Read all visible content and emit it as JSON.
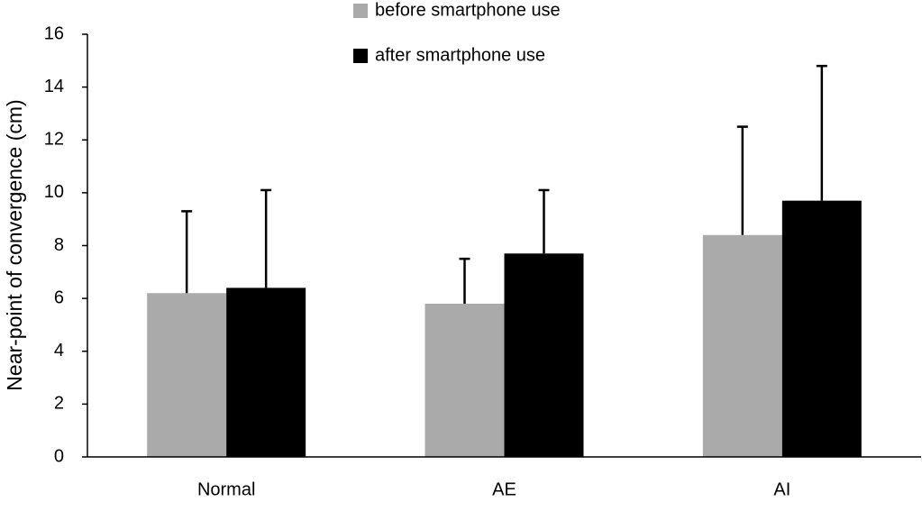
{
  "chart_data": {
    "type": "bar",
    "y_label": "Near-point of convergence (cm)",
    "categories": [
      "Normal",
      "AE",
      "AI"
    ],
    "series": [
      {
        "name": "before smartphone use",
        "color": "#aaaaaa",
        "values": [
          6.2,
          5.8,
          8.4
        ],
        "errors": [
          3.1,
          1.7,
          4.1
        ]
      },
      {
        "name": "after smartphone use",
        "color": "#000000",
        "values": [
          6.4,
          7.7,
          9.7
        ],
        "errors": [
          3.7,
          2.4,
          5.1
        ]
      }
    ],
    "ylim": [
      0,
      16
    ],
    "yticks": [
      0,
      2,
      4,
      6,
      8,
      10,
      12,
      14,
      16
    ]
  }
}
